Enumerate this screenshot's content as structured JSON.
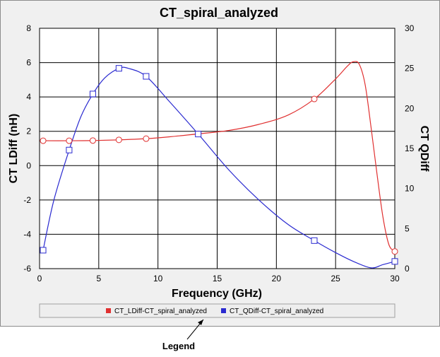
{
  "colors": {
    "series1": "#e03030",
    "series2": "#2a2ad0",
    "grid": "#000000",
    "panel": "#f0f0f0",
    "plot_bg": "#ffffff",
    "legend_bg": "#eeeeee"
  },
  "legend_callout": "Legend",
  "chart_data": {
    "type": "line",
    "title": "CT_spiral_analyzed",
    "xlabel": "Frequency (GHz)",
    "ylabel": "CT LDiff (nH)",
    "y2label": "CT QDiff",
    "xlim": [
      0,
      30
    ],
    "ylim": [
      -6,
      8
    ],
    "y2lim": [
      0,
      30
    ],
    "x_ticks": [
      "0",
      "5",
      "10",
      "15",
      "20",
      "25",
      "30"
    ],
    "y_ticks": [
      "-6",
      "-4",
      "-2",
      "0",
      "2",
      "4",
      "6",
      "8"
    ],
    "y2_ticks": [
      "0",
      "5",
      "10",
      "15",
      "20",
      "25",
      "30"
    ],
    "grid": true,
    "legend_position": "bottom",
    "series": [
      {
        "name": "CT_LDiff-CT_spiral_analyzed",
        "axis": "left",
        "marker": "circle",
        "x": [
          0.3,
          2.5,
          4.5,
          6.7,
          9,
          11,
          13.4,
          16,
          18.5,
          21,
          23.2,
          25,
          26,
          26.5,
          27,
          27.5,
          28,
          28.5,
          29,
          29.5,
          30
        ],
        "y": [
          1.45,
          1.45,
          1.46,
          1.5,
          1.57,
          1.68,
          1.85,
          2.05,
          2.4,
          2.95,
          3.88,
          5.05,
          5.8,
          6.05,
          5.9,
          4.7,
          2.2,
          -0.5,
          -3.0,
          -4.6,
          -5.0
        ],
        "markers_x": [
          0.3,
          2.5,
          4.5,
          6.7,
          9,
          13.4,
          23.2,
          30
        ],
        "markers_y": [
          1.45,
          1.45,
          1.46,
          1.5,
          1.57,
          1.85,
          3.88,
          -5.0
        ]
      },
      {
        "name": "CT_QDiff-CT_spiral_analyzed",
        "axis": "right",
        "marker": "square",
        "x": [
          0.3,
          1.2,
          2.5,
          3.5,
          4.5,
          5.5,
          6.7,
          7.5,
          9,
          11,
          13.4,
          16,
          18.5,
          21,
          23.2,
          25,
          26.5,
          28,
          29,
          30
        ],
        "y": [
          2.3,
          8.5,
          14.8,
          19,
          21.8,
          23.8,
          25.0,
          25.0,
          24.0,
          20.8,
          16.8,
          12.3,
          8.6,
          5.5,
          3.5,
          2.0,
          0.9,
          0.1,
          0.5,
          0.9
        ],
        "markers_x": [
          0.3,
          2.5,
          4.5,
          6.7,
          9,
          13.4,
          23.2,
          30
        ],
        "markers_y": [
          2.3,
          14.8,
          21.8,
          25.0,
          24.0,
          16.8,
          3.5,
          0.9
        ]
      }
    ]
  }
}
